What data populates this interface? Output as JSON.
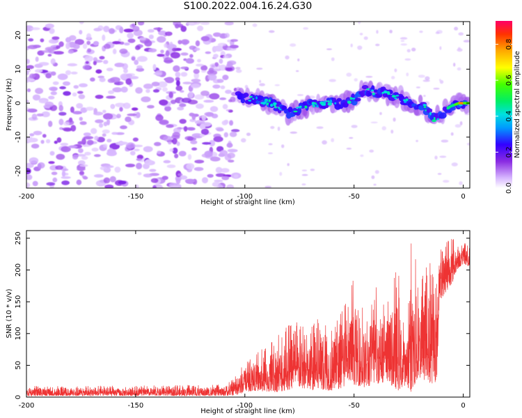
{
  "page_title": "S100.2022.004.16.24.G30",
  "chart_data": [
    {
      "type": "heatmap",
      "title": "",
      "xlabel": "Height of straight line (km)",
      "ylabel": "Frequency (Hz)",
      "xlim": [
        -200,
        3
      ],
      "ylim": [
        -25,
        24
      ],
      "xticks": [
        -200,
        -150,
        -100,
        -50,
        0
      ],
      "yticks": [
        -20,
        -10,
        0,
        10,
        20
      ],
      "colorbar": {
        "label": "Normalized spectral amplitude",
        "range": [
          0,
          0.93
        ],
        "ticks": [
          0.0,
          0.2,
          0.4,
          0.6,
          0.8
        ],
        "colormap": "rainbow (white-violet at 0, red at max)"
      },
      "regions": [
        {
          "description": "diffuse violet noise",
          "x_range": [
            -200,
            -108
          ],
          "freq_range": [
            -25,
            24
          ],
          "amplitude": [
            0.05,
            0.15
          ]
        },
        {
          "description": "signal band (Doppler track)",
          "x_range": [
            -103,
            3
          ],
          "freq_center": [
            [
              -103,
              2
            ],
            [
              -95,
              1
            ],
            [
              -88,
              0
            ],
            [
              -80,
              -3
            ],
            [
              -72,
              -1
            ],
            [
              -64,
              0
            ],
            [
              -56,
              0
            ],
            [
              -50,
              1
            ],
            [
              -45,
              4
            ],
            [
              -38,
              3
            ],
            [
              -30,
              2
            ],
            [
              -24,
              0
            ],
            [
              -18,
              -1
            ],
            [
              -13,
              -5
            ],
            [
              -10,
              -3
            ],
            [
              -6,
              -1
            ],
            [
              -2,
              0
            ],
            [
              0,
              0
            ],
            [
              3,
              0
            ]
          ],
          "amplitude": [
            0.2,
            0.93
          ]
        }
      ],
      "grid": false
    },
    {
      "type": "line",
      "title": "",
      "xlabel": "Height of straight line (km)",
      "ylabel": "SNR (10 * v/v)",
      "xlim": [
        -200,
        3
      ],
      "ylim": [
        0,
        262
      ],
      "xticks": [
        -200,
        -150,
        -100,
        -50,
        0
      ],
      "yticks": [
        0,
        50,
        100,
        150,
        200,
        250
      ],
      "color": "#ee3333",
      "envelope": {
        "x": [
          -200,
          -150,
          -110,
          -104,
          -100,
          -95,
          -90,
          -85,
          -80,
          -75,
          -70,
          -65,
          -60,
          -55,
          -50,
          -45,
          -40,
          -35,
          -30,
          -26,
          -24,
          -20,
          -15,
          -12,
          -11,
          -8,
          -5,
          -3,
          0,
          3
        ],
        "min": [
          2,
          2,
          2,
          3,
          8,
          10,
          8,
          8,
          10,
          15,
          10,
          12,
          10,
          15,
          20,
          15,
          20,
          25,
          10,
          20,
          8,
          30,
          20,
          25,
          150,
          165,
          180,
          200,
          210,
          205
        ],
        "max": [
          18,
          18,
          20,
          35,
          60,
          70,
          80,
          100,
          120,
          120,
          110,
          130,
          120,
          150,
          190,
          140,
          180,
          145,
          210,
          90,
          255,
          200,
          230,
          180,
          240,
          250,
          255,
          235,
          245,
          240
        ]
      },
      "grid": false
    }
  ]
}
